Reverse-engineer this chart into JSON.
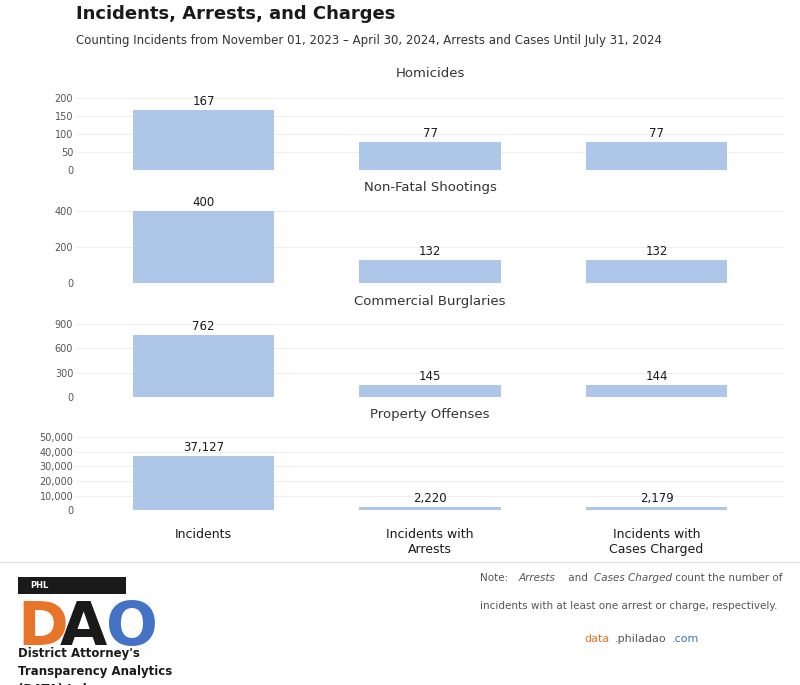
{
  "title": "Incidents, Arrests, and Charges",
  "subtitle": "Counting Incidents from November 01, 2023 – April 30, 2024, Arrests and Cases Until July 31, 2024",
  "sections": [
    {
      "label": "Homicides",
      "incidents": 167,
      "arrests": 77,
      "charges": 77,
      "yticks": [
        0,
        50,
        100,
        150,
        200
      ],
      "ymax": 225
    },
    {
      "label": "Non-Fatal Shootings",
      "incidents": 400,
      "arrests": 132,
      "charges": 132,
      "yticks": [
        0,
        200,
        400
      ],
      "ymax": 450
    },
    {
      "label": "Commercial Burglaries",
      "incidents": 762,
      "arrests": 145,
      "charges": 144,
      "yticks": [
        0,
        300,
        600,
        900
      ],
      "ymax": 1000
    },
    {
      "label": "Property Offenses",
      "incidents": 37127,
      "arrests": 2220,
      "charges": 2179,
      "yticks": [
        0,
        10000,
        20000,
        30000,
        40000,
        50000
      ],
      "ymax": 55000
    }
  ],
  "bar_color": "#aec6e8",
  "section_header_bg": "#d4d4d4",
  "section_header_color": "#333333",
  "xlabel_incidents": "Incidents",
  "xlabel_arrests": "Incidents with\nArrests",
  "xlabel_charges": "Incidents with\nCases Charged",
  "note_line1": "Note: ",
  "note_italic1": "Arrests",
  "note_line1b": " and ",
  "note_italic2": "Cases Charged",
  "note_line1c": " count the number of",
  "note_line2": "incidents with at least one arrest or charge, respectively.",
  "website_data": "data",
  "website_philadao": ".philadao",
  "website_com": ".com",
  "website_color_data": "#e8742a",
  "website_color_philadao": "#555555",
  "website_color_com": "#4472c4",
  "dao_text": "District Attorney's\nTransparency Analytics\n(DATA) Lab",
  "background_color": "#ffffff"
}
